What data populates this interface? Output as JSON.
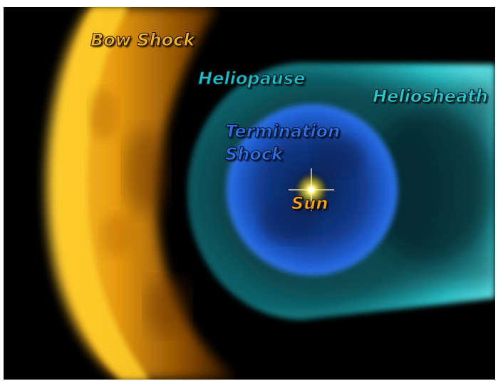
{
  "labels": {
    "bow_shock": "Bow Shock",
    "heliopause": "Heliopause",
    "heliosheath": "Heliosheath",
    "termination_line1": "Termination",
    "termination_line2": "Shock",
    "sun": "Sun"
  },
  "colors": {
    "background": "#000000",
    "bow_shock": "#f7b21a",
    "heliosheath": "#2fd0d6",
    "termination_shock": "#1f5fd6",
    "sun": "#fff27a"
  }
}
